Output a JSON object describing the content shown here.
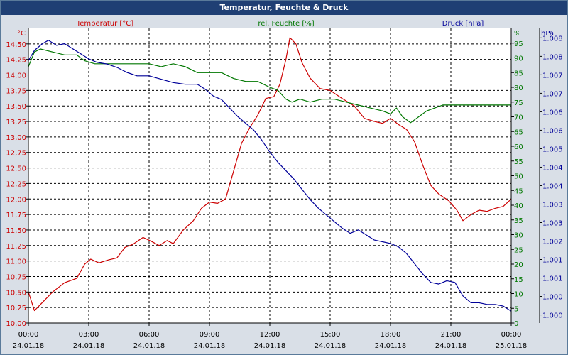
{
  "window": {
    "title": "Temperatur, Feuchte & Druck"
  },
  "colors": {
    "temperature": "#cc0000",
    "humidity": "#007700",
    "pressure": "#000099",
    "axis": "#000000"
  },
  "chart_data": {
    "type": "line",
    "title": "Temperatur, Feuchte & Druck",
    "grid": true,
    "x": {
      "range_hours": [
        0,
        24
      ],
      "ticks": [
        {
          "h": 0,
          "time": "00:00",
          "date": "24.01.18"
        },
        {
          "h": 3,
          "time": "03:00",
          "date": "24.01.18"
        },
        {
          "h": 6,
          "time": "06:00",
          "date": "24.01.18"
        },
        {
          "h": 9,
          "time": "09:00",
          "date": "24.01.18"
        },
        {
          "h": 12,
          "time": "12:00",
          "date": "24.01.18"
        },
        {
          "h": 15,
          "time": "15:00",
          "date": "24.01.18"
        },
        {
          "h": 18,
          "time": "18:00",
          "date": "24.01.18"
        },
        {
          "h": 21,
          "time": "21:00",
          "date": "24.01.18"
        },
        {
          "h": 24,
          "time": "00:00",
          "date": "25.01.18"
        }
      ]
    },
    "axes": {
      "temperature": {
        "unit": "°C",
        "label": "Temperatur [°C]",
        "range": [
          10.0,
          14.75
        ],
        "ticks": [
          "10,00",
          "10,25",
          "10,50",
          "10,75",
          "11,00",
          "11,25",
          "11,50",
          "11,75",
          "12,00",
          "12,25",
          "12,50",
          "12,75",
          "13,00",
          "13,25",
          "13,50",
          "13,75",
          "14,00",
          "14,25",
          "14,50"
        ]
      },
      "humidity": {
        "unit": "%",
        "label": "rel. Feuchte [%]",
        "range": [
          0,
          100
        ],
        "ticks": [
          "0",
          "5",
          "10",
          "15",
          "20",
          "25",
          "30",
          "35",
          "40",
          "45",
          "50",
          "55",
          "60",
          "65",
          "70",
          "75",
          "80",
          "85",
          "90",
          "95"
        ]
      },
      "pressure": {
        "unit": "hPa",
        "label": "Druck [hPa]",
        "range": [
          999.75,
          1008.45
        ],
        "ticks": [
          "1.000",
          "1.000",
          "1.001",
          "1.001",
          "1.002",
          "1.003",
          "1.003",
          "1.004",
          "1.004",
          "1.005",
          "1.006",
          "1.006",
          "1.007",
          "1.007",
          "1.008",
          "1.008"
        ]
      }
    },
    "series": [
      {
        "name": "Temperatur [°C]",
        "axis": "temperature",
        "points": [
          [
            0,
            10.5
          ],
          [
            0.3,
            10.2
          ],
          [
            0.6,
            10.3
          ],
          [
            1.2,
            10.5
          ],
          [
            1.8,
            10.65
          ],
          [
            2.4,
            10.72
          ],
          [
            2.8,
            10.95
          ],
          [
            3.1,
            11.03
          ],
          [
            3.5,
            10.97
          ],
          [
            4,
            11.02
          ],
          [
            4.4,
            11.05
          ],
          [
            4.8,
            11.22
          ],
          [
            5.2,
            11.27
          ],
          [
            5.7,
            11.38
          ],
          [
            6.1,
            11.32
          ],
          [
            6.5,
            11.25
          ],
          [
            6.9,
            11.33
          ],
          [
            7.2,
            11.28
          ],
          [
            7.7,
            11.5
          ],
          [
            8.2,
            11.65
          ],
          [
            8.6,
            11.85
          ],
          [
            9.0,
            11.95
          ],
          [
            9.4,
            11.93
          ],
          [
            9.8,
            12.0
          ],
          [
            10.2,
            12.45
          ],
          [
            10.6,
            12.9
          ],
          [
            11.0,
            13.15
          ],
          [
            11.4,
            13.35
          ],
          [
            11.8,
            13.62
          ],
          [
            12.2,
            13.65
          ],
          [
            12.5,
            13.85
          ],
          [
            12.8,
            14.25
          ],
          [
            13.0,
            14.6
          ],
          [
            13.3,
            14.5
          ],
          [
            13.6,
            14.2
          ],
          [
            14.0,
            13.95
          ],
          [
            14.5,
            13.78
          ],
          [
            15.0,
            13.75
          ],
          [
            15.6,
            13.62
          ],
          [
            16.2,
            13.5
          ],
          [
            16.7,
            13.3
          ],
          [
            17.2,
            13.25
          ],
          [
            17.6,
            13.22
          ],
          [
            18.0,
            13.3
          ],
          [
            18.4,
            13.2
          ],
          [
            18.8,
            13.12
          ],
          [
            19.2,
            12.92
          ],
          [
            19.6,
            12.55
          ],
          [
            20.0,
            12.22
          ],
          [
            20.4,
            12.08
          ],
          [
            20.9,
            11.97
          ],
          [
            21.3,
            11.82
          ],
          [
            21.6,
            11.65
          ],
          [
            22.0,
            11.75
          ],
          [
            22.4,
            11.82
          ],
          [
            22.8,
            11.8
          ],
          [
            23.2,
            11.85
          ],
          [
            23.6,
            11.88
          ],
          [
            23.9,
            11.97
          ],
          [
            24,
            12.0
          ]
        ]
      },
      {
        "name": "rel. Feuchte [%]",
        "axis": "humidity",
        "points": [
          [
            0,
            87
          ],
          [
            0.3,
            92
          ],
          [
            0.6,
            93
          ],
          [
            1.2,
            92
          ],
          [
            1.8,
            91
          ],
          [
            2.4,
            91
          ],
          [
            2.8,
            89
          ],
          [
            3.3,
            88
          ],
          [
            4,
            88
          ],
          [
            4.5,
            88
          ],
          [
            5.2,
            88
          ],
          [
            6,
            88
          ],
          [
            6.6,
            87
          ],
          [
            7.2,
            88
          ],
          [
            7.8,
            87
          ],
          [
            8.4,
            85
          ],
          [
            9.0,
            85
          ],
          [
            9.6,
            85
          ],
          [
            10.2,
            83
          ],
          [
            10.8,
            82
          ],
          [
            11.4,
            82
          ],
          [
            12.0,
            80
          ],
          [
            12.4,
            79
          ],
          [
            12.8,
            76
          ],
          [
            13.1,
            75
          ],
          [
            13.5,
            76
          ],
          [
            14.0,
            75
          ],
          [
            14.6,
            76
          ],
          [
            15.2,
            76
          ],
          [
            15.8,
            75
          ],
          [
            16.4,
            74
          ],
          [
            17.0,
            73
          ],
          [
            17.6,
            72
          ],
          [
            18.0,
            71
          ],
          [
            18.3,
            73
          ],
          [
            18.6,
            70
          ],
          [
            19.0,
            68
          ],
          [
            19.4,
            70
          ],
          [
            19.8,
            72
          ],
          [
            20.2,
            73
          ],
          [
            20.6,
            74
          ],
          [
            21.2,
            74
          ],
          [
            21.8,
            74
          ],
          [
            22.4,
            74
          ],
          [
            23.0,
            74
          ],
          [
            23.6,
            74
          ],
          [
            24,
            74
          ]
        ]
      },
      {
        "name": "Druck [hPa]",
        "axis": "pressure",
        "points": [
          [
            0,
            1007.5
          ],
          [
            0.3,
            1007.8
          ],
          [
            0.7,
            1008.0
          ],
          [
            1.0,
            1008.1
          ],
          [
            1.4,
            1007.95
          ],
          [
            1.8,
            1008.0
          ],
          [
            2.2,
            1007.85
          ],
          [
            2.6,
            1007.7
          ],
          [
            3.0,
            1007.55
          ],
          [
            3.4,
            1007.45
          ],
          [
            3.9,
            1007.4
          ],
          [
            4.4,
            1007.3
          ],
          [
            4.9,
            1007.15
          ],
          [
            5.4,
            1007.05
          ],
          [
            6.0,
            1007.05
          ],
          [
            6.6,
            1006.95
          ],
          [
            7.2,
            1006.85
          ],
          [
            7.8,
            1006.8
          ],
          [
            8.4,
            1006.8
          ],
          [
            8.8,
            1006.65
          ],
          [
            9.2,
            1006.45
          ],
          [
            9.6,
            1006.35
          ],
          [
            10.0,
            1006.1
          ],
          [
            10.4,
            1005.85
          ],
          [
            10.8,
            1005.65
          ],
          [
            11.2,
            1005.45
          ],
          [
            11.6,
            1005.15
          ],
          [
            12.0,
            1004.8
          ],
          [
            12.4,
            1004.5
          ],
          [
            12.8,
            1004.25
          ],
          [
            13.2,
            1004.0
          ],
          [
            13.6,
            1003.7
          ],
          [
            14.0,
            1003.4
          ],
          [
            14.4,
            1003.15
          ],
          [
            14.8,
            1002.95
          ],
          [
            15.2,
            1002.75
          ],
          [
            15.6,
            1002.55
          ],
          [
            16.0,
            1002.4
          ],
          [
            16.4,
            1002.5
          ],
          [
            16.8,
            1002.35
          ],
          [
            17.2,
            1002.2
          ],
          [
            17.6,
            1002.15
          ],
          [
            18.0,
            1002.1
          ],
          [
            18.4,
            1002.0
          ],
          [
            18.8,
            1001.8
          ],
          [
            19.2,
            1001.5
          ],
          [
            19.6,
            1001.2
          ],
          [
            20.0,
            1000.95
          ],
          [
            20.4,
            1000.9
          ],
          [
            20.8,
            1001.0
          ],
          [
            21.2,
            1000.95
          ],
          [
            21.6,
            1000.55
          ],
          [
            22.0,
            1000.35
          ],
          [
            22.4,
            1000.35
          ],
          [
            22.8,
            1000.3
          ],
          [
            23.2,
            1000.3
          ],
          [
            23.6,
            1000.25
          ],
          [
            24,
            1000.1
          ]
        ]
      }
    ]
  }
}
